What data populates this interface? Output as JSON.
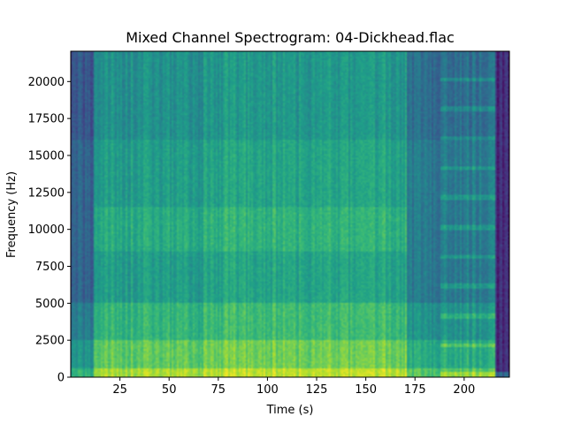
{
  "chart_data": {
    "type": "heatmap",
    "title": "Mixed Channel Spectrogram: 04-Dickhead.flac",
    "xlabel": "Time (s)",
    "ylabel": "Frequency (Hz)",
    "xlim": [
      0,
      223
    ],
    "ylim": [
      0,
      22050
    ],
    "xticks": [
      25,
      50,
      75,
      100,
      125,
      150,
      175,
      200
    ],
    "yticks": [
      0,
      2500,
      5000,
      7500,
      10000,
      12500,
      15000,
      17500,
      20000
    ],
    "colormap": "viridis",
    "grid": false,
    "sections": [
      {
        "start": 0,
        "end": 12,
        "level": 0.3
      },
      {
        "start": 12,
        "end": 68,
        "level": 0.55
      },
      {
        "start": 68,
        "end": 171,
        "level": 0.58
      },
      {
        "start": 171,
        "end": 188,
        "level": 0.4
      },
      {
        "start": 188,
        "end": 216,
        "level": 0.42
      },
      {
        "start": 216,
        "end": 223,
        "level": 0.12
      }
    ]
  }
}
